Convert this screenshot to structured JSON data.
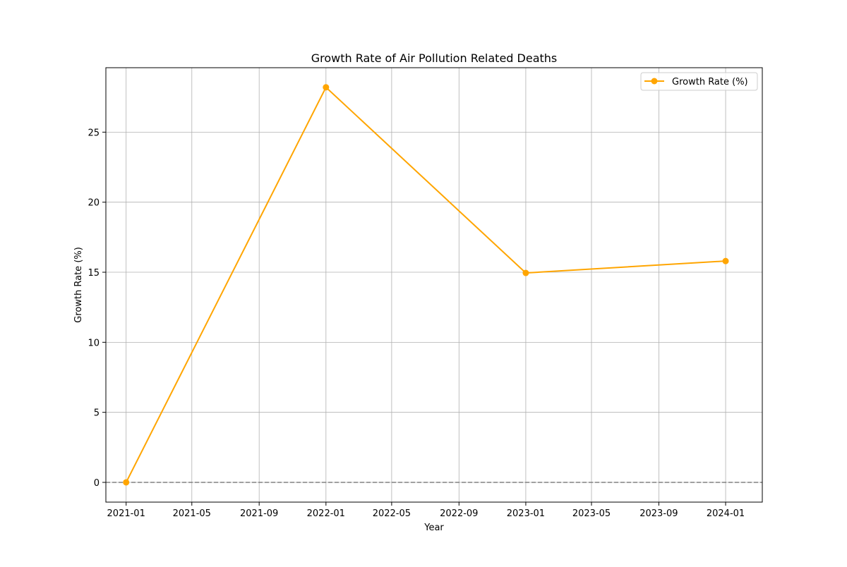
{
  "colors": {
    "series": "#ffa500",
    "grid": "#b0b0b0",
    "zero_line": "#808080",
    "axes": "#000000",
    "legend_border": "#cccccc"
  },
  "chart_data": {
    "type": "line",
    "title": "Growth Rate of Air Pollution Related Deaths",
    "xlabel": "Year",
    "ylabel": "Growth Rate (%)",
    "x_scale": "date",
    "xlim": [
      "2020-11-25",
      "2024-03-08"
    ],
    "ylim": [
      -1.41,
      29.6
    ],
    "x_ticks": [
      "2021-01",
      "2021-05",
      "2021-09",
      "2022-01",
      "2022-05",
      "2022-09",
      "2023-01",
      "2023-05",
      "2023-09",
      "2024-01"
    ],
    "y_ticks": [
      0,
      5,
      10,
      15,
      20,
      25
    ],
    "grid": true,
    "legend_position": "top-right",
    "reference_line": {
      "y": 0,
      "style": "dashed"
    },
    "x": [
      "2021-01-01",
      "2022-01-01",
      "2023-01-01",
      "2024-01-01"
    ],
    "series": [
      {
        "name": "Growth Rate (%)",
        "values": [
          0,
          28.2,
          14.95,
          15.8
        ],
        "marker": "circle"
      }
    ]
  }
}
